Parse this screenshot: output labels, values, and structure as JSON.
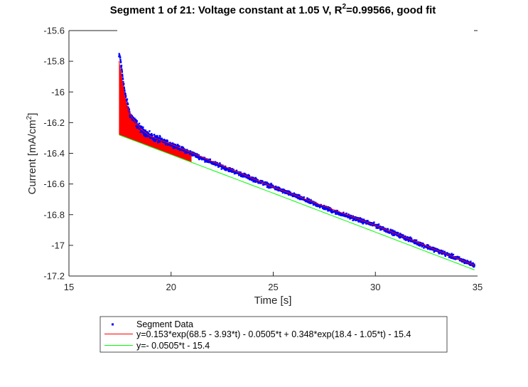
{
  "chart_data": {
    "type": "scatter",
    "title": {
      "prefix": "Segment 1 of 21: Voltage constant at 1.05 V, R",
      "superscript": "2",
      "suffix": "=0.99566, good fit"
    },
    "xlabel": "Time [s]",
    "ylabel": {
      "prefix": "Current [mA/cm",
      "superscript": "2",
      "suffix": "]"
    },
    "xlim": [
      15,
      35
    ],
    "ylim": [
      -17.2,
      -15.6
    ],
    "xticks": [
      15,
      20,
      25,
      30,
      35
    ],
    "xtick_labels": [
      "15",
      "20",
      "25",
      "30",
      "35"
    ],
    "yticks": [
      -15.6,
      -15.8,
      -16,
      -16.2,
      -16.4,
      -16.6,
      -16.8,
      -17,
      -17.2
    ],
    "ytick_labels": [
      "-15.6",
      "-15.8",
      "-16",
      "-16.2",
      "-16.4",
      "-16.6",
      "-16.8",
      "-17",
      "-17.2"
    ],
    "grid": false,
    "legend_position": "bottom-outside",
    "series": [
      {
        "name": "Segment Data",
        "kind": "scatter",
        "color": "#0000ff",
        "x_range": [
          17.45,
          34.85
        ],
        "sample_points": [
          {
            "x": 17.5,
            "y": -15.77
          },
          {
            "x": 17.75,
            "y": -16.02
          },
          {
            "x": 18.0,
            "y": -16.15
          },
          {
            "x": 18.5,
            "y": -16.24
          },
          {
            "x": 19.0,
            "y": -16.29
          },
          {
            "x": 20.0,
            "y": -16.34
          },
          {
            "x": 22.0,
            "y": -16.46
          },
          {
            "x": 25.0,
            "y": -16.62
          },
          {
            "x": 28.0,
            "y": -16.78
          },
          {
            "x": 30.0,
            "y": -16.87
          },
          {
            "x": 32.0,
            "y": -16.98
          },
          {
            "x": 34.85,
            "y": -17.13
          }
        ]
      },
      {
        "name": "y=0.153*exp(68.5 - 3.93*t) - 0.0505*t + 0.348*exp(18.4 - 1.05*t) - 15.4",
        "kind": "line",
        "color": "#ff0000",
        "x_range": [
          17.45,
          34.85
        ],
        "sample_points": [
          {
            "x": 17.45,
            "y": -15.8
          },
          {
            "x": 17.75,
            "y": -16.05
          },
          {
            "x": 18.0,
            "y": -16.15
          },
          {
            "x": 18.5,
            "y": -16.24
          },
          {
            "x": 19.0,
            "y": -16.29
          },
          {
            "x": 20.0,
            "y": -16.34
          },
          {
            "x": 25.0,
            "y": -16.62
          },
          {
            "x": 30.0,
            "y": -16.87
          },
          {
            "x": 34.85,
            "y": -17.13
          }
        ]
      },
      {
        "name": "y=- 0.0505*t - 15.4",
        "kind": "line",
        "color": "#00ff00",
        "x_range": [
          17.45,
          34.85
        ],
        "sample_points": [
          {
            "x": 17.45,
            "y": -16.28
          },
          {
            "x": 25.0,
            "y": -16.66
          },
          {
            "x": 34.85,
            "y": -17.16
          }
        ]
      }
    ]
  }
}
